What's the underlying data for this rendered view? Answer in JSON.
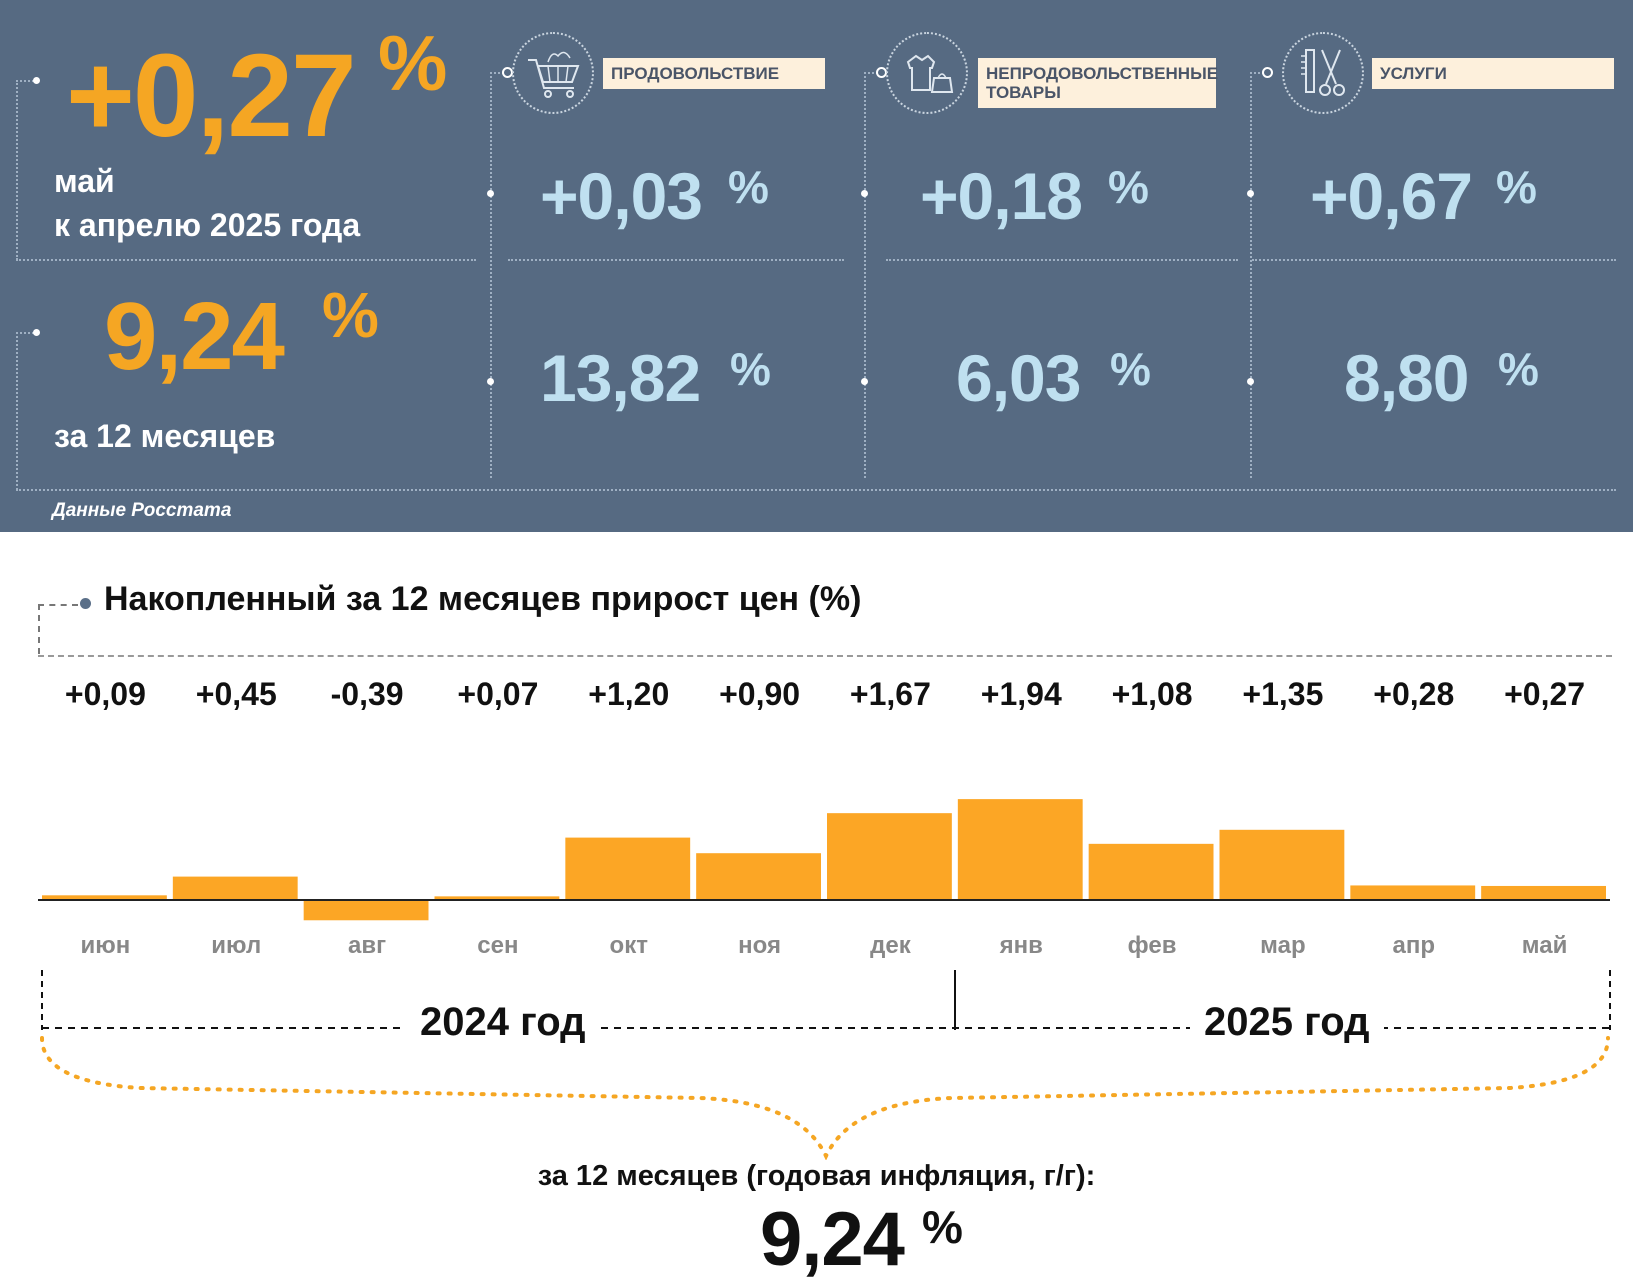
{
  "header": {
    "monthly_value": "+0,27",
    "monthly_pct": "%",
    "monthly_caption_1": "май",
    "monthly_caption_2": "к апрелю 2025 года",
    "annual_value": "9,24",
    "annual_pct": "%",
    "annual_caption": "за 12 месяцев",
    "source": "Данные Росстата"
  },
  "categories": [
    {
      "label": "ПРОДОВОЛЬСТВИЕ",
      "icon": "shopping-cart-icon",
      "monthly": "+0,03",
      "annual": "13,82",
      "pct": "%"
    },
    {
      "label": "НЕПРОДОВОЛЬСТВЕННЫЕ ТОВАРЫ",
      "icon": "clothes-bag-icon",
      "monthly": "+0,18",
      "annual": "6,03",
      "pct": "%"
    },
    {
      "label": "УСЛУГИ",
      "icon": "comb-scissors-icon",
      "monthly": "+0,67",
      "annual": "8,80",
      "pct": "%"
    }
  ],
  "colors": {
    "panel_bg": "#566a82",
    "accent_orange": "#f5a623",
    "value_blue": "#bfe0f0",
    "bar_orange": "#fca625",
    "label_bg": "#fdf0dc"
  },
  "chart_data": {
    "type": "bar",
    "title": "Накопленный за 12 месяцев прирост цен (%)",
    "categories": [
      "июн",
      "июл",
      "авг",
      "сен",
      "окт",
      "ноя",
      "дек",
      "янв",
      "фев",
      "мар",
      "апр",
      "май"
    ],
    "values": [
      0.09,
      0.45,
      -0.39,
      0.07,
      1.2,
      0.9,
      1.67,
      1.94,
      1.08,
      1.35,
      0.28,
      0.27
    ],
    "value_labels": [
      "+0,09",
      "+0,45",
      "-0,39",
      "+0,07",
      "+1,20",
      "+0,90",
      "+1,67",
      "+1,94",
      "+1,08",
      "+1,35",
      "+0,28",
      "+0,27"
    ],
    "year_groups": [
      {
        "label": "2024 год",
        "months": [
          "июн",
          "июл",
          "авг",
          "сен",
          "окт",
          "ноя",
          "дек"
        ]
      },
      {
        "label": "2025 год",
        "months": [
          "янв",
          "фев",
          "мар",
          "апр",
          "май"
        ]
      }
    ],
    "summary_caption": "за 12 месяцев (годовая инфляция, г/г):",
    "summary_value": "9,24",
    "summary_pct": "%",
    "xlabel": "",
    "ylabel": ""
  }
}
